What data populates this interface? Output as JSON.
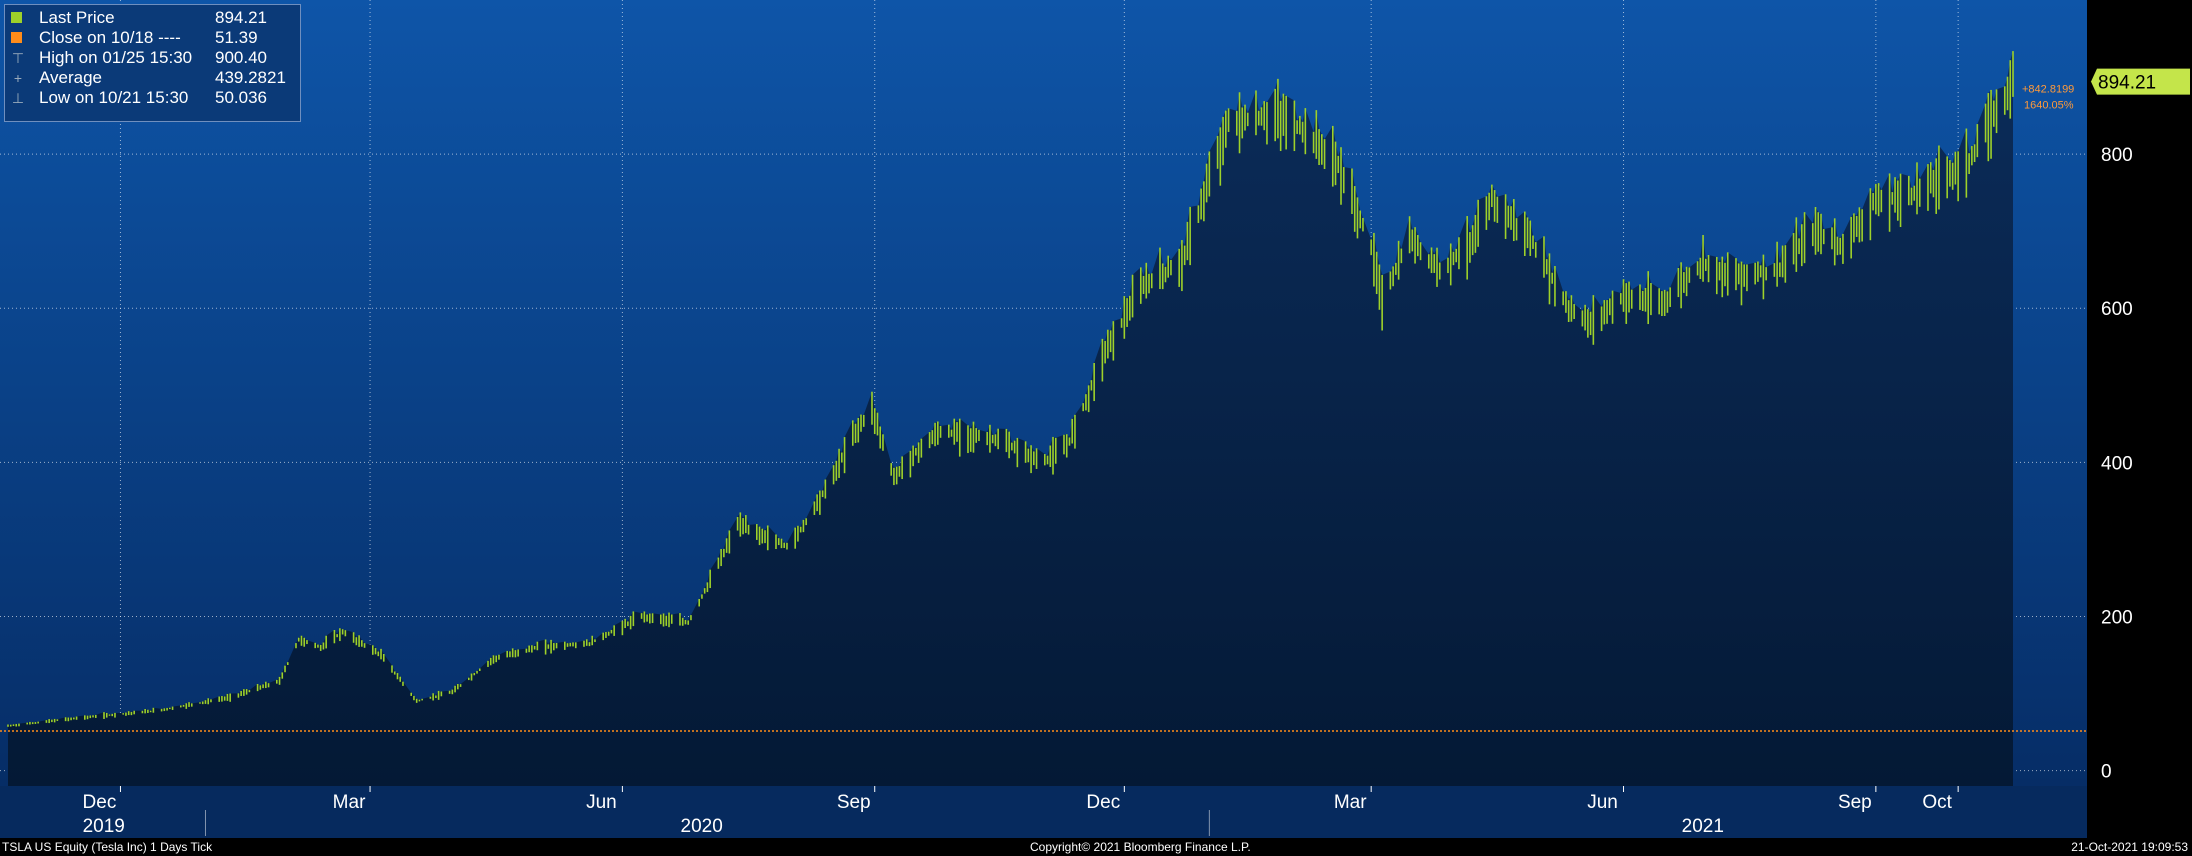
{
  "chart_data": {
    "type": "bar",
    "subtype": "ohlc",
    "ticker": "TSLA US Equity",
    "ylim": [
      -20,
      1000
    ],
    "yticks": [
      0,
      200,
      400,
      600,
      800
    ],
    "xtick_labels": [
      "Dec",
      "Mar",
      "Jun",
      "Sep",
      "Dec",
      "Mar",
      "Jun",
      "Sep",
      "Oct"
    ],
    "year_labels": [
      "2019",
      "2020",
      "2021"
    ],
    "x_range": [
      "2019-10-21",
      "2021-10-21"
    ],
    "legend_position": "top-left",
    "grid": true,
    "reference_line": {
      "name": "Close on 10/18",
      "value": 51.39,
      "color": "#ff8c1a"
    },
    "last_price_tag": {
      "value": "894.21",
      "change": "+842.8199",
      "change_pct": "1640.05%"
    },
    "series": [
      {
        "name": "Last Price",
        "color": "#9ed12a",
        "dates": [
          "2019-10-21",
          "2019-11-15",
          "2019-12-15",
          "2020-01-10",
          "2020-01-28",
          "2020-02-04",
          "2020-02-12",
          "2020-02-20",
          "2020-03-05",
          "2020-03-18",
          "2020-03-31",
          "2020-04-15",
          "2020-05-01",
          "2020-05-20",
          "2020-06-08",
          "2020-06-25",
          "2020-07-05",
          "2020-07-13",
          "2020-07-22",
          "2020-08-01",
          "2020-08-15",
          "2020-08-25",
          "2020-08-31",
          "2020-09-08",
          "2020-09-18",
          "2020-09-25",
          "2020-10-15",
          "2020-11-01",
          "2020-11-10",
          "2020-11-17",
          "2020-11-24",
          "2020-12-08",
          "2020-12-22",
          "2021-01-08",
          "2021-01-25",
          "2021-02-05",
          "2021-02-17",
          "2021-03-01",
          "2021-03-05",
          "2021-03-15",
          "2021-03-26",
          "2021-04-08",
          "2021-04-14",
          "2021-04-28",
          "2021-05-12",
          "2021-05-20",
          "2021-06-01",
          "2021-06-15",
          "2021-06-30",
          "2021-07-10",
          "2021-07-27",
          "2021-08-10",
          "2021-08-20",
          "2021-08-31",
          "2021-09-15",
          "2021-09-28",
          "2021-10-05",
          "2021-10-14",
          "2021-10-21"
        ],
        "values": [
          58,
          68,
          78,
          95,
          116,
          170,
          160,
          180,
          150,
          90,
          102,
          145,
          160,
          165,
          200,
          192,
          260,
          320,
          305,
          290,
          370,
          440,
          470,
          380,
          420,
          440,
          430,
          400,
          420,
          480,
          545,
          630,
          660,
          840,
          850,
          830,
          785,
          680,
          610,
          690,
          650,
          690,
          740,
          690,
          600,
          580,
          615,
          605,
          660,
          640,
          650,
          700,
          680,
          735,
          750,
          775,
          790,
          850,
          894
        ]
      }
    ]
  },
  "legend": {
    "items": [
      {
        "label": "Last Price",
        "value": "894.21",
        "swatch": "#9ed12a"
      },
      {
        "label": "Close on 10/18 ----",
        "value": "51.39",
        "swatch": "#ff8c1a"
      },
      {
        "label": "High on 01/25 15:30",
        "value": "900.40",
        "symbol": "⊤"
      },
      {
        "label": "Average",
        "value": "439.2821",
        "symbol": "+"
      },
      {
        "label": "Low on 10/21 15:30",
        "value": "50.036",
        "symbol": "⊥"
      }
    ]
  },
  "footer": {
    "left": "TSLA US Equity (Tesla Inc) 1 Days  Tick",
    "center": "Copyright© 2021 Bloomberg Finance L.P.",
    "right": "21-Oct-2021 19:09:53"
  },
  "colors": {
    "plot_top": "#0e55a8",
    "plot_bottom": "#06306a",
    "fill_top": "#0a2a55",
    "fill_bottom": "#051a36",
    "bar": "#9ed12a",
    "ref_line": "#ff8c1a"
  }
}
